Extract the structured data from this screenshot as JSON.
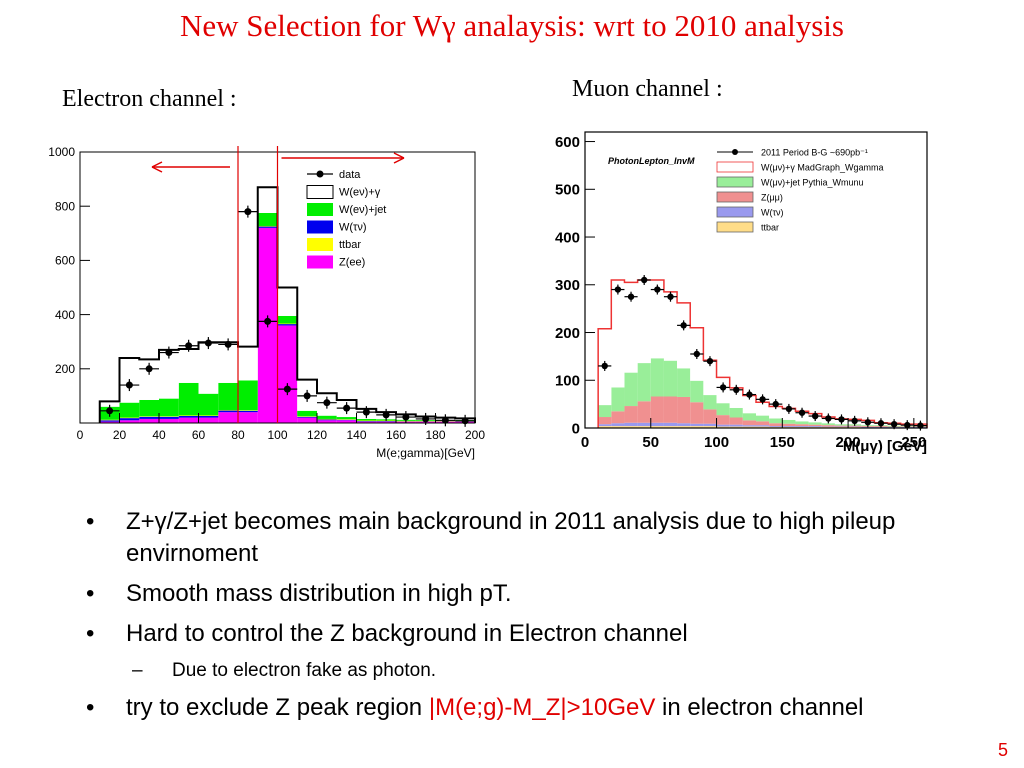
{
  "title": "New Selection for Wγ analaysis:  wrt to 2010 analysis",
  "electron_label": "Electron channel :",
  "muon_label": "Muon channel :",
  "bullets": [
    {
      "text": "Z+γ/Z+jet becomes main background in 2011 analysis due to high pileup envirnoment"
    },
    {
      "text": "Smooth mass distribution in high pT."
    },
    {
      "text": "Hard to control the Z background in Electron channel"
    },
    {
      "text": "Due to electron fake as photon."
    },
    {
      "text_before": "try to exclude Z peak region ",
      "text_highlight": "|M(e;g)-M_Z|>10GeV",
      "text_after": " in electron channel",
      "highlight_color": "#e00000"
    }
  ],
  "page_number": "5",
  "chart_data": [
    {
      "type": "bar",
      "stacked": true,
      "xlabel": "M(e;gamma)[GeV]",
      "ylabel": "",
      "xlim": [
        0,
        200
      ],
      "ylim": [
        0,
        1000
      ],
      "xticks": [
        "0",
        "20",
        "40",
        "60",
        "80",
        "100",
        "120",
        "140",
        "160",
        "180",
        "200"
      ],
      "yticks": [
        "200",
        "400",
        "600",
        "800",
        "1000"
      ],
      "grid": false,
      "legend_position": "top-right",
      "legend": [
        {
          "name": "data",
          "style": "marker"
        },
        {
          "name": "W(eν)+γ",
          "color": "#ffffff"
        },
        {
          "name": "W(eν)+jet",
          "color": "#00ee00"
        },
        {
          "name": "W(τν)",
          "color": "#0000ee"
        },
        {
          "name": "ttbar",
          "color": "#ffff00"
        },
        {
          "name": "Z(ee)",
          "color": "#ff00ff"
        }
      ],
      "bin_edges": [
        10,
        20,
        30,
        40,
        50,
        60,
        70,
        80,
        90,
        100,
        110,
        120,
        130,
        140,
        150,
        160,
        170,
        180,
        190,
        200
      ],
      "series": [
        {
          "name": "Z(ee)",
          "color": "#ff00ff",
          "values": [
            5,
            10,
            15,
            15,
            20,
            20,
            40,
            40,
            720,
            360,
            20,
            10,
            10,
            5,
            5,
            5,
            5,
            5,
            5
          ]
        },
        {
          "name": "W(τν)",
          "color": "#0000ee",
          "values": [
            5,
            8,
            8,
            8,
            6,
            6,
            6,
            5,
            5,
            5,
            3,
            3,
            2,
            2,
            2,
            1,
            1,
            1,
            1
          ]
        },
        {
          "name": "ttbar",
          "color": "#ffff00",
          "values": [
            2,
            2,
            2,
            2,
            2,
            2,
            2,
            2,
            2,
            2,
            2,
            2,
            2,
            2,
            2,
            2,
            2,
            2,
            2
          ]
        },
        {
          "name": "W(eν)+jet",
          "color": "#00ee00",
          "values": [
            48,
            55,
            60,
            65,
            120,
            80,
            100,
            110,
            48,
            28,
            20,
            12,
            8,
            6,
            5,
            4,
            3,
            3,
            3
          ]
        },
        {
          "name": "W(eν)+γ",
          "color": "#ffffff",
          "values": [
            20,
            165,
            150,
            180,
            125,
            190,
            150,
            125,
            95,
            105,
            115,
            83,
            63,
            37,
            26,
            20,
            13,
            9,
            6
          ]
        }
      ],
      "data_points": {
        "name": "data",
        "x": [
          15,
          25,
          35,
          45,
          55,
          65,
          75,
          85,
          95,
          105,
          115,
          125,
          135,
          145,
          155,
          165,
          175,
          185,
          195
        ],
        "y": [
          45,
          140,
          200,
          260,
          285,
          295,
          290,
          780,
          375,
          125,
          100,
          75,
          55,
          40,
          30,
          22,
          15,
          10,
          8
        ]
      },
      "annotations": [
        "red vertical lines at 80 and 100 GeV",
        "arrows pointing away from the Z peak"
      ]
    },
    {
      "type": "bar",
      "stacked": true,
      "xlabel": "M(μγ) [GeV]",
      "ylabel": "",
      "xlim": [
        0,
        260
      ],
      "ylim": [
        0,
        620
      ],
      "xticks": [
        "0",
        "50",
        "100",
        "150",
        "200",
        "250"
      ],
      "yticks": [
        "0",
        "100",
        "200",
        "300",
        "400",
        "500",
        "600"
      ],
      "grid": false,
      "legend_position": "top-right",
      "plot_label": "PhotonLepton_InvM",
      "legend": [
        {
          "name": "2011 Period B-G ~690pb⁻¹",
          "style": "marker"
        },
        {
          "name": "W(μν)+γ MadGraph_Wgamma",
          "color": "#ffffff",
          "edge": "#ee3333"
        },
        {
          "name": "W(μν)+jet Pythia_Wmunu",
          "color": "#99ee99"
        },
        {
          "name": "Z(μμ)",
          "color": "#f09090"
        },
        {
          "name": "W(τν)",
          "color": "#9999ee"
        },
        {
          "name": "ttbar",
          "color": "#ffdd88"
        }
      ],
      "bin_edges": [
        10,
        20,
        30,
        40,
        50,
        60,
        70,
        80,
        90,
        100,
        110,
        120,
        130,
        140,
        150,
        160,
        170,
        180,
        190,
        200,
        210,
        220,
        230,
        240,
        250,
        260
      ],
      "series": [
        {
          "name": "ttbar",
          "color": "#ffdd88",
          "values": [
            4,
            4,
            4,
            4,
            4,
            4,
            4,
            4,
            4,
            3,
            3,
            3,
            3,
            2,
            2,
            2,
            2,
            2,
            2,
            2,
            1,
            1,
            1,
            1,
            1
          ]
        },
        {
          "name": "W(τν)",
          "color": "#9999ee",
          "values": [
            4,
            6,
            7,
            7,
            7,
            7,
            6,
            5,
            5,
            4,
            4,
            3,
            3,
            2,
            2,
            2,
            2,
            1,
            1,
            1,
            1,
            1,
            1,
            1,
            1
          ]
        },
        {
          "name": "Z(μμ)",
          "color": "#f09090",
          "values": [
            15,
            25,
            35,
            45,
            55,
            55,
            55,
            45,
            30,
            20,
            15,
            10,
            8,
            6,
            5,
            4,
            3,
            3,
            2,
            2,
            2,
            2,
            1,
            1,
            1
          ]
        },
        {
          "name": "W(μν)+jet",
          "color": "#99ee99",
          "values": [
            25,
            50,
            70,
            80,
            80,
            75,
            60,
            45,
            30,
            25,
            20,
            15,
            12,
            10,
            8,
            6,
            5,
            4,
            3,
            3,
            2,
            2,
            2,
            1,
            1
          ]
        },
        {
          "name": "W(μν)+γ",
          "color": "#ffffff",
          "edge": "#ee3333",
          "values": [
            160,
            225,
            189,
            174,
            164,
            144,
            137,
            111,
            73,
            54,
            42,
            37,
            28,
            25,
            24,
            21,
            18,
            13,
            11,
            10,
            10,
            5,
            5,
            4,
            4
          ]
        }
      ],
      "data_points": {
        "name": "2011 Period B-G ~690pb⁻¹",
        "x": [
          15,
          25,
          35,
          45,
          55,
          65,
          75,
          85,
          95,
          105,
          115,
          125,
          135,
          145,
          155,
          165,
          175,
          185,
          195,
          205,
          215,
          225,
          235,
          245,
          255
        ],
        "y": [
          130,
          290,
          275,
          310,
          290,
          275,
          215,
          155,
          140,
          85,
          80,
          70,
          60,
          50,
          40,
          32,
          25,
          20,
          18,
          15,
          12,
          10,
          8,
          6,
          5
        ]
      }
    }
  ]
}
